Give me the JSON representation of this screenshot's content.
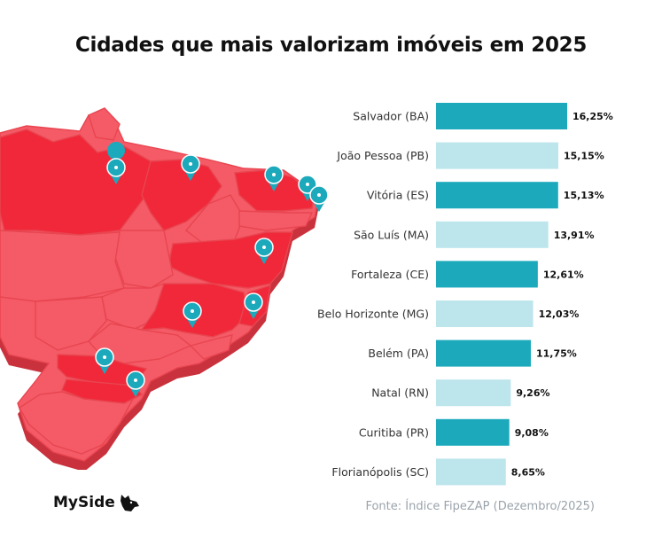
{
  "title": "Cidades que mais valorizam imóveis em 2025",
  "source": "Fonte: Índice FipeZAP (Dezembro/2025)",
  "brand": {
    "name": "MySide",
    "icon": "dog-head-icon"
  },
  "colors": {
    "bar_dark": "#1ba9bb",
    "bar_light": "#bde5ec",
    "map_highlight": "#f0283a",
    "map_base": "#f45b66",
    "map_side": "#c9323d",
    "pin": "#1ba9bb"
  },
  "chart_data": {
    "type": "bar",
    "orientation": "horizontal",
    "categories": [
      "Salvador (BA)",
      "João Pessoa (PB)",
      "Vitória (ES)",
      "São Luís (MA)",
      "Fortaleza (CE)",
      "Belo Horizonte (MG)",
      "Belém (PA)",
      "Natal (RN)",
      "Curitiba (PR)",
      "Florianópolis (SC)"
    ],
    "values": [
      16.25,
      15.15,
      15.13,
      13.91,
      12.61,
      12.03,
      11.75,
      9.26,
      9.08,
      8.65
    ],
    "value_labels": [
      "16,25%",
      "15,15%",
      "15,13%",
      "13,91%",
      "12,61%",
      "12,03%",
      "11,75%",
      "9,26%",
      "9,08%",
      "8,65%"
    ],
    "bar_colors": [
      "dark",
      "light",
      "dark",
      "light",
      "dark",
      "light",
      "dark",
      "light",
      "dark",
      "light"
    ],
    "xlim": [
      0,
      16.25
    ],
    "grid": false,
    "legend": "none"
  }
}
